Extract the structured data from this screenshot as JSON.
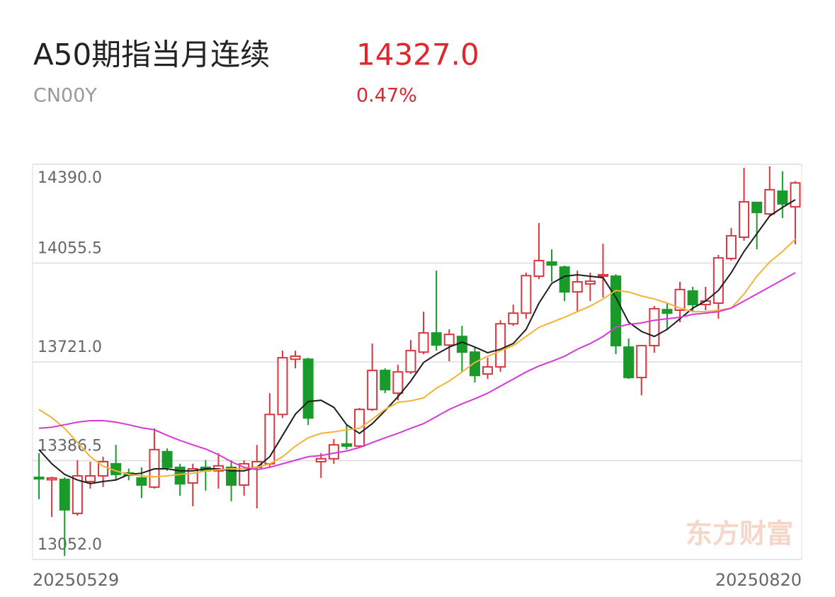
{
  "header": {
    "title": "A50期指当月连续",
    "code": "CN00Y",
    "price": "14327.0",
    "change": "0.47%"
  },
  "chart_data": {
    "type": "candlestick",
    "watermark": "东方财富",
    "up_color": "#d7373f",
    "down_color": "#1a9a2a",
    "categories": [
      "20250529",
      null,
      null,
      null,
      null,
      null,
      null,
      null,
      null,
      null,
      null,
      null,
      null,
      null,
      null,
      null,
      null,
      null,
      null,
      null,
      null,
      null,
      null,
      null,
      null,
      null,
      null,
      null,
      null,
      null,
      null,
      null,
      null,
      null,
      null,
      null,
      null,
      null,
      null,
      null,
      null,
      null,
      null,
      null,
      null,
      null,
      null,
      null,
      null,
      null,
      null,
      null,
      null,
      null,
      null,
      null,
      null,
      null,
      null,
      "20250820"
    ],
    "open": [
      13330,
      13322,
      13323,
      13208,
      13316,
      13335,
      13376,
      13345,
      13328,
      13297,
      13417,
      13364,
      13311,
      13364,
      13352,
      13364,
      13304,
      13364,
      13376,
      13543,
      13730,
      13730,
      13383,
      13393,
      13443,
      13436,
      13560,
      13692,
      13615,
      13687,
      13754,
      13819,
      13778,
      13807,
      13754,
      13680,
      13704,
      13850,
      13886,
      14011,
      14059,
      14042,
      13958,
      13985,
      14011,
      14011,
      13771,
      13668,
      13776,
      13898,
      13896,
      13961,
      13915,
      13920,
      14071,
      14143,
      14261,
      14222,
      14299,
      14246
    ],
    "high": [
      13412,
      13332,
      13330,
      13388,
      13383,
      13400,
      13440,
      13360,
      13364,
      13496,
      13428,
      13376,
      13376,
      13388,
      13412,
      13388,
      13388,
      13440,
      13615,
      13759,
      13759,
      13735,
      13412,
      13460,
      13508,
      13565,
      13783,
      13699,
      13711,
      13795,
      13891,
      14030,
      13831,
      13843,
      13771,
      13735,
      13862,
      13915,
      14023,
      14191,
      14102,
      14047,
      14030,
      14023,
      14121,
      14018,
      13800,
      13778,
      13910,
      13920,
      13992,
      13975,
      13975,
      14083,
      14174,
      14378,
      14263,
      14383,
      14366,
      14333
    ],
    "low": [
      13256,
      13196,
      13064,
      13200,
      13292,
      13297,
      13320,
      13320,
      13260,
      13292,
      13352,
      13268,
      13232,
      13285,
      13292,
      13249,
      13268,
      13225,
      13364,
      13531,
      13699,
      13507,
      13328,
      13376,
      13424,
      13431,
      13555,
      13615,
      13591,
      13680,
      13747,
      13759,
      13723,
      13687,
      13651,
      13663,
      13687,
      13843,
      13867,
      14001,
      13992,
      13927,
      13891,
      13927,
      13939,
      13747,
      13663,
      13608,
      13752,
      13831,
      13855,
      13891,
      13896,
      13867,
      14064,
      14131,
      14102,
      14215,
      14208,
      14119
    ],
    "close": [
      13325,
      13328,
      13220,
      13335,
      13335,
      13383,
      13340,
      13337,
      13304,
      13424,
      13364,
      13308,
      13359,
      13352,
      13369,
      13304,
      13376,
      13383,
      13543,
      13735,
      13740,
      13531,
      13393,
      13440,
      13436,
      13560,
      13692,
      13627,
      13687,
      13759,
      13819,
      13778,
      13814,
      13754,
      13675,
      13704,
      13850,
      13886,
      14013,
      14064,
      14049,
      13958,
      13992,
      13994,
      14016,
      13776,
      13668,
      13776,
      13901,
      13886,
      13966,
      13915,
      13927,
      14073,
      14148,
      14263,
      14227,
      14304,
      14256,
      14327
    ],
    "series": [
      {
        "color": "#1e1e1e",
        "values": [
          13424,
          13376,
          13340,
          13321,
          13309,
          13316,
          13321,
          13340,
          13344,
          13359,
          13359,
          13352,
          13352,
          13359,
          13359,
          13352,
          13352,
          13364,
          13400,
          13472,
          13544,
          13587,
          13591,
          13567,
          13508,
          13479,
          13512,
          13556,
          13603,
          13656,
          13719,
          13747,
          13771,
          13788,
          13771,
          13752,
          13764,
          13783,
          13831,
          13920,
          13987,
          14011,
          14016,
          14011,
          14006,
          13939,
          13855,
          13824,
          13807,
          13831,
          13867,
          13903,
          13927,
          13963,
          14023,
          14095,
          14155,
          14215,
          14244,
          14270
        ]
      },
      {
        "color": "#f5b335",
        "values": [
          13560,
          13532,
          13496,
          13448,
          13400,
          13368,
          13352,
          13340,
          13335,
          13332,
          13335,
          13340,
          13344,
          13352,
          13356,
          13359,
          13359,
          13364,
          13376,
          13400,
          13436,
          13464,
          13479,
          13484,
          13491,
          13496,
          13527,
          13560,
          13584,
          13589,
          13599,
          13632,
          13656,
          13687,
          13719,
          13740,
          13759,
          13776,
          13807,
          13838,
          13855,
          13872,
          13891,
          13910,
          13934,
          13963,
          13958,
          13944,
          13934,
          13920,
          13903,
          13891,
          13891,
          13896,
          13903,
          13951,
          14011,
          14059,
          14095,
          14136
        ]
      },
      {
        "color": "#d43ad8",
        "values": [
          13496,
          13500,
          13508,
          13517,
          13522,
          13522,
          13517,
          13508,
          13498,
          13491,
          13472,
          13455,
          13440,
          13426,
          13407,
          13383,
          13364,
          13356,
          13364,
          13376,
          13388,
          13400,
          13404,
          13412,
          13419,
          13431,
          13448,
          13464,
          13479,
          13496,
          13512,
          13536,
          13560,
          13579,
          13596,
          13615,
          13639,
          13663,
          13687,
          13707,
          13723,
          13740,
          13764,
          13783,
          13807,
          13838,
          13848,
          13853,
          13862,
          13867,
          13872,
          13882,
          13886,
          13891,
          13903,
          13927,
          13951,
          13975,
          13999,
          14023
        ]
      }
    ],
    "ylim": [
      13052,
      14390
    ],
    "yticks": [
      {
        "value": 13052,
        "label": "13052.0"
      },
      {
        "value": 13386.5,
        "label": "13386.5"
      },
      {
        "value": 13721,
        "label": "13721.0"
      },
      {
        "value": 14055.5,
        "label": "14055.5"
      },
      {
        "value": 14390,
        "label": "14390.0"
      }
    ]
  }
}
